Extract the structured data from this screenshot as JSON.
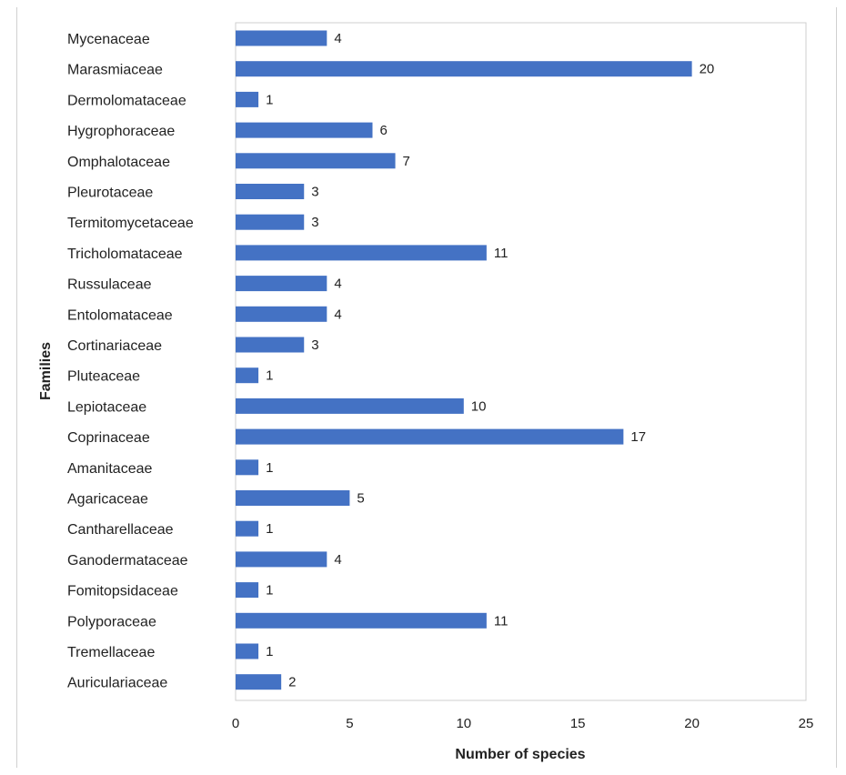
{
  "chart_data": {
    "type": "bar",
    "orientation": "horizontal",
    "title": "",
    "xlabel": "Number of species",
    "ylabel": "Families",
    "xlim": [
      0,
      25
    ],
    "xticks": [
      0,
      5,
      10,
      15,
      20,
      25
    ],
    "grid": false,
    "legend": "none",
    "bar_color": "#4472C4",
    "categories": [
      "Mycenaceae",
      "Marasmiaceae",
      "Dermolomataceae",
      "Hygrophoraceae",
      "Omphalotaceae",
      "Pleurotaceae",
      "Termitomycetaceae",
      "Tricholomataceae",
      "Russulaceae",
      "Entolomataceae",
      "Cortinariaceae",
      "Pluteaceae",
      "Lepiotaceae",
      "Coprinaceae",
      "Amanitaceae",
      "Agaricaceae",
      "Cantharellaceae",
      "Ganodermataceae",
      "Fomitopsidaceae",
      "Polyporaceae",
      "Tremellaceae",
      "Auriculariaceae"
    ],
    "values": [
      4,
      20,
      1,
      6,
      7,
      3,
      3,
      11,
      4,
      4,
      3,
      1,
      10,
      17,
      1,
      5,
      1,
      4,
      1,
      11,
      1,
      2
    ]
  }
}
